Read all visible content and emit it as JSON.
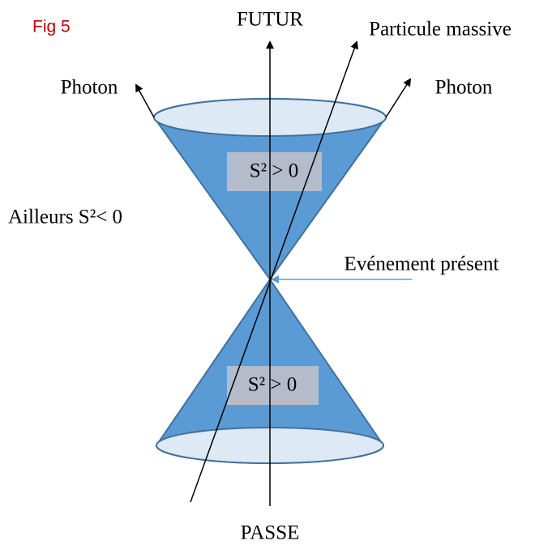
{
  "figure_label": "Fig 5",
  "labels": {
    "future": "FUTUR",
    "past": "PASSE",
    "massive_particle": "Particule massive",
    "photon_left": "Photon",
    "photon_right": "Photon",
    "elsewhere": "Ailleurs S²< 0",
    "present_event": "Evénement présent",
    "future_cone": "S² > 0",
    "past_cone": "S² > 0"
  }
}
